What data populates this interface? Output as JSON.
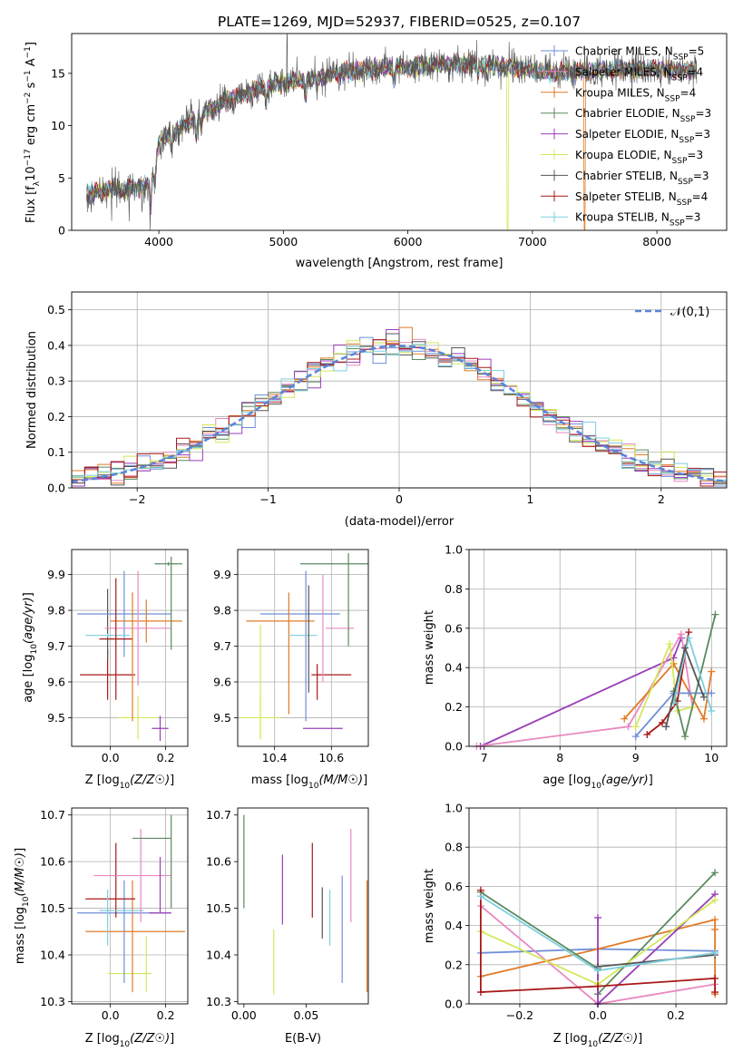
{
  "figure": {
    "title": "PLATE=1269, MJD=52937, FIBERID=0525, z=0.107"
  },
  "models": [
    {
      "name": "Chabrier MILES, N_SSP=5",
      "label_main": "Chabrier MILES, N",
      "label_sub": "SSP",
      "label_tail": "=5",
      "color": "#6f8fd8"
    },
    {
      "name": "Salpeter MILES, N_SSP=4",
      "label_main": "Salpeter MILES, N",
      "label_sub": "SSP",
      "label_tail": "=4",
      "color": "#e889c0"
    },
    {
      "name": "Kroupa MILES, N_SSP=4",
      "label_main": "Kroupa MILES, N",
      "label_sub": "SSP",
      "label_tail": "=4",
      "color": "#e07b28"
    },
    {
      "name": "Chabrier ELODIE, N_SSP=3",
      "label_main": "Chabrier ELODIE, N",
      "label_sub": "SSP",
      "label_tail": "=3",
      "color": "#5a8a60"
    },
    {
      "name": "Salpeter ELODIE, N_SSP=3",
      "label_main": "Salpeter ELODIE, N",
      "label_sub": "SSP",
      "label_tail": "=3",
      "color": "#9a3fb8"
    },
    {
      "name": "Kroupa ELODIE, N_SSP=3",
      "label_main": "Kroupa ELODIE, N",
      "label_sub": "SSP",
      "label_tail": "=3",
      "color": "#d4e85a"
    },
    {
      "name": "Chabrier STELIB, N_SSP=3",
      "label_main": "Chabrier STELIB, N",
      "label_sub": "SSP",
      "label_tail": "=3",
      "color": "#555555"
    },
    {
      "name": "Salpeter STELIB, N_SSP=4",
      "label_main": "Salpeter STELIB, N",
      "label_sub": "SSP",
      "label_tail": "=4",
      "color": "#a81818"
    },
    {
      "name": "Kroupa STELIB, N_SSP=3",
      "label_main": "Kroupa STELIB, N",
      "label_sub": "SSP",
      "label_tail": "=3",
      "color": "#7ecfe0"
    }
  ],
  "chart_data": [
    {
      "id": "spectrum",
      "type": "line",
      "xlabel": "wavelength [Angstrom, rest frame]",
      "ylabel_parts": [
        "Flux [f",
        "λ",
        "10",
        "−17",
        " erg cm",
        "−2",
        " s",
        "−1",
        " A",
        "−1",
        "]"
      ],
      "xlim": [
        3300,
        8560
      ],
      "ylim": [
        0,
        18.8
      ],
      "xticks": [
        4000,
        5000,
        6000,
        7000,
        8000
      ],
      "yticks": [
        0,
        5,
        10,
        15
      ],
      "grid": false,
      "legend_position": "right",
      "x_range": [
        3420,
        8320
      ],
      "continuum": [
        [
          3420,
          3.4
        ],
        [
          3600,
          4.0
        ],
        [
          3700,
          3.8
        ],
        [
          3900,
          4.3
        ],
        [
          3950,
          5.0
        ],
        [
          4000,
          8.5
        ],
        [
          4100,
          9.2
        ],
        [
          4200,
          10.0
        ],
        [
          4400,
          11.5
        ],
        [
          4600,
          12.6
        ],
        [
          4800,
          13.6
        ],
        [
          5000,
          14.2
        ],
        [
          5200,
          14.4
        ],
        [
          5400,
          14.9
        ],
        [
          5600,
          15.3
        ],
        [
          5800,
          15.5
        ],
        [
          6000,
          15.6
        ],
        [
          6200,
          15.9
        ],
        [
          6400,
          15.9
        ],
        [
          6600,
          15.8
        ],
        [
          6800,
          15.6
        ],
        [
          7000,
          15.3
        ],
        [
          7200,
          15.0
        ],
        [
          7400,
          15.2
        ],
        [
          7600,
          15.3
        ],
        [
          7800,
          15.4
        ],
        [
          8000,
          15.3
        ],
        [
          8320,
          15.3
        ]
      ],
      "absorption_lines": [
        [
          3934,
          2.5
        ],
        [
          3969,
          2.2
        ],
        [
          4102,
          1.5
        ],
        [
          4300,
          1.6
        ],
        [
          4340,
          1.4
        ],
        [
          4861,
          1.6
        ],
        [
          5175,
          1.4
        ],
        [
          5270,
          0.8
        ],
        [
          5890,
          1.2
        ],
        [
          6563,
          1.0
        ]
      ],
      "spikes": [
        [
          5030,
          5.6
        ],
        [
          6800,
          -15.8
        ],
        [
          7420,
          -15.4
        ],
        [
          3930,
          -3.8
        ],
        [
          3760,
          -2.5
        ],
        [
          3620,
          -2.0
        ]
      ]
    },
    {
      "id": "residual-histogram",
      "type": "histogram",
      "xlabel": "(data-model)/error",
      "ylabel": "Normed distribution",
      "xlim": [
        -2.5,
        2.5
      ],
      "ylim": [
        0,
        0.55
      ],
      "xticks": [
        -2,
        -1,
        0,
        1,
        2
      ],
      "xtick_labels": [
        "−2",
        "−1",
        "0",
        "1",
        "2"
      ],
      "yticks": [
        0.0,
        0.1,
        0.2,
        0.3,
        0.4,
        0.5
      ],
      "grid": true,
      "bin_width": 0.1,
      "bin_start": -2.5,
      "noise": 0.035,
      "reference": {
        "label": "𝒩(0,1)",
        "color": "#5b84d9",
        "style": "dashed"
      }
    },
    {
      "id": "age-vs-Z",
      "type": "errorbar",
      "xlabel": "Z [log10(Z/Z☉)]",
      "ylabel": "age [log10(age/yr)]",
      "xlim": [
        -0.14,
        0.28
      ],
      "ylim": [
        9.42,
        9.97
      ],
      "xticks": [
        0.0,
        0.2
      ],
      "yticks": [
        9.5,
        9.6,
        9.7,
        9.8,
        9.9
      ],
      "grid": true,
      "points": [
        {
          "x": 0.1,
          "xerr": 0.07,
          "y": 9.5,
          "yerr": 0.06,
          "c": 5
        },
        {
          "x": 0.18,
          "xerr": 0.03,
          "y": 9.47,
          "yerr": 0.035,
          "c": 4
        },
        {
          "x": -0.01,
          "xerr": 0.1,
          "y": 9.62,
          "yerr": 0.07,
          "c": 7
        },
        {
          "x": -0.01,
          "xerr": 0.0,
          "y": 9.76,
          "yerr": 0.1,
          "c": 6
        },
        {
          "x": 0.05,
          "xerr": 0.17,
          "y": 9.79,
          "yerr": 0.12,
          "c": 0
        },
        {
          "x": 0.13,
          "xerr": 0.13,
          "y": 9.77,
          "yerr": 0.06,
          "c": 2
        },
        {
          "x": 0.1,
          "xerr": 0.12,
          "y": 9.75,
          "yerr": 0.16,
          "c": 1
        },
        {
          "x": -0.01,
          "xerr": 0.08,
          "y": 9.73,
          "yerr": 0.005,
          "c": 8
        },
        {
          "x": 0.02,
          "xerr": 0.06,
          "y": 9.72,
          "yerr": 0.17,
          "c": 7
        },
        {
          "x": 0.08,
          "xerr": 0.0,
          "y": 9.67,
          "yerr": 0.18,
          "c": 2
        },
        {
          "x": 0.21,
          "xerr": 0.05,
          "y": 9.93,
          "yerr": 0.005,
          "c": 3
        },
        {
          "x": 0.22,
          "xerr": 0.0,
          "y": 9.82,
          "yerr": 0.13,
          "c": 3
        }
      ]
    },
    {
      "id": "age-vs-mass",
      "type": "errorbar",
      "xlabel": "mass [log10(M/M☉)]",
      "ylabel": "",
      "xlim": [
        10.27,
        10.73
      ],
      "ylim": [
        9.42,
        9.97
      ],
      "xticks": [
        10.4,
        10.6
      ],
      "yticks": [
        9.5,
        9.6,
        9.7,
        9.8,
        9.9
      ],
      "grid": true,
      "points": [
        {
          "x": 10.35,
          "xerr": 0.07,
          "y": 9.5,
          "yerr": 0.06,
          "c": 5
        },
        {
          "x": 10.35,
          "xerr": 0.0,
          "y": 9.6,
          "yerr": 0.16,
          "c": 5
        },
        {
          "x": 10.57,
          "xerr": 0.07,
          "y": 9.47,
          "yerr": 0.0,
          "c": 4
        },
        {
          "x": 10.6,
          "xerr": 0.07,
          "y": 9.62,
          "yerr": 0.0,
          "c": 7
        },
        {
          "x": 10.55,
          "xerr": 0.0,
          "y": 9.6,
          "yerr": 0.05,
          "c": 7
        },
        {
          "x": 10.51,
          "xerr": 0.0,
          "y": 9.7,
          "yerr": 0.21,
          "c": 0
        },
        {
          "x": 10.49,
          "xerr": 0.14,
          "y": 9.79,
          "yerr": 0.0,
          "c": 0
        },
        {
          "x": 10.42,
          "xerr": 0.12,
          "y": 9.77,
          "yerr": 0.0,
          "c": 2
        },
        {
          "x": 10.45,
          "xerr": 0.0,
          "y": 9.68,
          "yerr": 0.17,
          "c": 2
        },
        {
          "x": 10.63,
          "xerr": 0.05,
          "y": 9.75,
          "yerr": 0.0,
          "c": 1
        },
        {
          "x": 10.57,
          "xerr": 0.0,
          "y": 9.75,
          "yerr": 0.15,
          "c": 1
        },
        {
          "x": 10.5,
          "xerr": 0.05,
          "y": 9.73,
          "yerr": 0.0,
          "c": 8
        },
        {
          "x": 10.52,
          "xerr": 0.0,
          "y": 9.72,
          "yerr": 0.15,
          "c": 6
        },
        {
          "x": 10.61,
          "xerr": 0.12,
          "y": 9.93,
          "yerr": 0.0,
          "c": 3
        },
        {
          "x": 10.66,
          "xerr": 0.0,
          "y": 9.83,
          "yerr": 0.13,
          "c": 3
        }
      ]
    },
    {
      "id": "mass-weight-vs-age",
      "type": "line",
      "xlabel": "age [log10(age/yr)]",
      "ylabel": "mass weight",
      "xlim": [
        6.8,
        10.2
      ],
      "ylim": [
        0,
        1.0
      ],
      "xticks": [
        7,
        8,
        9,
        10
      ],
      "yticks": [
        0.0,
        0.2,
        0.4,
        0.6,
        0.8,
        1.0
      ],
      "grid": true,
      "series": [
        {
          "c": 4,
          "x": [
            6.95,
            9.5,
            9.6
          ],
          "y": [
            0.0,
            0.45,
            0.55
          ]
        },
        {
          "c": 1,
          "x": [
            6.9,
            8.9,
            9.6,
            9.75
          ],
          "y": [
            0.0,
            0.1,
            0.57,
            0.2
          ]
        },
        {
          "c": 2,
          "x": [
            8.85,
            9.5,
            9.9,
            10.0
          ],
          "y": [
            0.14,
            0.42,
            0.14,
            0.38
          ]
        },
        {
          "c": 5,
          "x": [
            9.0,
            9.45,
            9.55,
            9.75
          ],
          "y": [
            0.1,
            0.52,
            0.18,
            0.2
          ]
        },
        {
          "c": 7,
          "x": [
            9.15,
            9.35,
            9.55,
            9.7
          ],
          "y": [
            0.06,
            0.12,
            0.23,
            0.58
          ]
        },
        {
          "c": 0,
          "x": [
            9.0,
            9.5,
            9.7,
            10.0
          ],
          "y": [
            0.05,
            0.27,
            0.27,
            0.27
          ]
        },
        {
          "c": 3,
          "x": [
            9.5,
            9.65,
            10.05
          ],
          "y": [
            0.28,
            0.05,
            0.67
          ]
        },
        {
          "c": 8,
          "x": [
            9.5,
            9.7,
            10.0
          ],
          "y": [
            0.22,
            0.55,
            0.18
          ]
        },
        {
          "c": 6,
          "x": [
            9.4,
            9.65,
            9.9
          ],
          "y": [
            0.1,
            0.5,
            0.25
          ]
        }
      ]
    },
    {
      "id": "mass-vs-Z",
      "type": "errorbar",
      "xlabel": "Z [log10(Z/Z☉)]",
      "ylabel": "mass [log10(M/M☉)]",
      "xlim": [
        -0.14,
        0.28
      ],
      "ylim": [
        10.295,
        10.715
      ],
      "xticks": [
        0.0,
        0.2
      ],
      "yticks": [
        10.3,
        10.4,
        10.5,
        10.6,
        10.7
      ],
      "grid": true,
      "points": [
        {
          "x": 0.07,
          "xerr": 0.08,
          "y": 10.36,
          "yerr": 0.0,
          "c": 5
        },
        {
          "x": 0.13,
          "xerr": 0.0,
          "y": 10.38,
          "yerr": 0.06,
          "c": 5
        },
        {
          "x": 0.09,
          "xerr": 0.18,
          "y": 10.45,
          "yerr": 0.0,
          "c": 2
        },
        {
          "x": 0.08,
          "xerr": 0.0,
          "y": 10.44,
          "yerr": 0.12,
          "c": 2
        },
        {
          "x": 0.05,
          "xerr": 0.17,
          "y": 10.49,
          "yerr": 0.0,
          "c": 0
        },
        {
          "x": 0.05,
          "xerr": 0.0,
          "y": 10.45,
          "yerr": 0.11,
          "c": 0
        },
        {
          "x": 0.0,
          "xerr": 0.09,
          "y": 10.52,
          "yerr": 0.0,
          "c": 7
        },
        {
          "x": 0.02,
          "xerr": 0.0,
          "y": 10.56,
          "yerr": 0.08,
          "c": 7
        },
        {
          "x": -0.01,
          "xerr": 0.0,
          "y": 10.48,
          "yerr": 0.06,
          "c": 8
        },
        {
          "x": 0.04,
          "xerr": 0.08,
          "y": 10.495,
          "yerr": 0.0,
          "c": 8
        },
        {
          "x": 0.08,
          "xerr": 0.14,
          "y": 10.57,
          "yerr": 0.0,
          "c": 1
        },
        {
          "x": 0.11,
          "xerr": 0.0,
          "y": 10.57,
          "yerr": 0.1,
          "c": 1
        },
        {
          "x": 0.18,
          "xerr": 0.04,
          "y": 10.49,
          "yerr": 0.0,
          "c": 4
        },
        {
          "x": 0.18,
          "xerr": 0.0,
          "y": 10.55,
          "yerr": 0.06,
          "c": 4
        },
        {
          "x": 0.15,
          "xerr": 0.07,
          "y": 10.65,
          "yerr": 0.0,
          "c": 3
        },
        {
          "x": 0.22,
          "xerr": 0.0,
          "y": 10.6,
          "yerr": 0.1,
          "c": 3
        }
      ]
    },
    {
      "id": "mass-vs-EBV",
      "type": "errorbar",
      "xlabel": "E(B-V)",
      "ylabel": "",
      "xlim": [
        -0.005,
        0.1
      ],
      "ylim": [
        10.295,
        10.715
      ],
      "xticks": [
        0.0,
        0.05
      ],
      "xtick_labels": [
        "0.00",
        "0.05"
      ],
      "yticks": [
        10.3,
        10.4,
        10.5,
        10.6,
        10.7
      ],
      "grid": false,
      "points": [
        {
          "x": 0.0,
          "xerr": 0.0,
          "y": 10.6,
          "yerr": 0.1,
          "c": 3
        },
        {
          "x": 0.024,
          "xerr": 0.0,
          "y": 10.385,
          "yerr": 0.07,
          "c": 5
        },
        {
          "x": 0.031,
          "xerr": 0.0,
          "y": 10.54,
          "yerr": 0.075,
          "c": 4
        },
        {
          "x": 0.055,
          "xerr": 0.0,
          "y": 10.56,
          "yerr": 0.08,
          "c": 7
        },
        {
          "x": 0.063,
          "xerr": 0.0,
          "y": 10.49,
          "yerr": 0.055,
          "c": 6
        },
        {
          "x": 0.069,
          "xerr": 0.0,
          "y": 10.48,
          "yerr": 0.06,
          "c": 8
        },
        {
          "x": 0.079,
          "xerr": 0.0,
          "y": 10.455,
          "yerr": 0.115,
          "c": 0
        },
        {
          "x": 0.086,
          "xerr": 0.0,
          "y": 10.57,
          "yerr": 0.1,
          "c": 1
        },
        {
          "x": 0.099,
          "xerr": 0.0,
          "y": 10.44,
          "yerr": 0.12,
          "c": 2
        }
      ]
    },
    {
      "id": "mass-weight-vs-Z",
      "type": "line",
      "xlabel": "Z [log10(Z/Z☉)]",
      "ylabel": "mass weight",
      "xlim": [
        -0.33,
        0.33
      ],
      "ylim": [
        0,
        1.0
      ],
      "xticks": [
        -0.2,
        0.0,
        0.2
      ],
      "xtick_labels": [
        "−0.2",
        "0.0",
        "0.2"
      ],
      "yticks": [
        0.0,
        0.2,
        0.4,
        0.6,
        0.8,
        1.0
      ],
      "grid": true,
      "series": [
        {
          "c": 0,
          "x": [
            -0.3,
            0.0,
            0.3
          ],
          "y": [
            0.26,
            0.28,
            0.27
          ]
        },
        {
          "c": 1,
          "x": [
            -0.3,
            0.0,
            0.3
          ],
          "y": [
            0.5,
            0.0,
            0.1
          ]
        },
        {
          "c": 2,
          "x": [
            -0.3,
            0.0,
            0.3,
            0.3,
            0.3
          ],
          "y": [
            0.14,
            0.28,
            0.43,
            0.05,
            0.38
          ]
        },
        {
          "c": 3,
          "x": [
            -0.3,
            0.0,
            0.0,
            0.3
          ],
          "y": [
            0.57,
            0.18,
            0.05,
            0.67
          ]
        },
        {
          "c": 4,
          "x": [
            0.0,
            0.0,
            0.0,
            0.3
          ],
          "y": [
            0.44,
            0.0,
            0.0,
            0.56
          ]
        },
        {
          "c": 5,
          "x": [
            -0.3,
            0.0,
            0.3
          ],
          "y": [
            0.37,
            0.1,
            0.53
          ]
        },
        {
          "c": 6,
          "x": [
            0.0,
            0.3
          ],
          "y": [
            0.19,
            0.25
          ]
        },
        {
          "c": 7,
          "x": [
            -0.3,
            -0.3,
            0.0,
            0.3,
            0.3
          ],
          "y": [
            0.58,
            0.06,
            0.09,
            0.13,
            0.06
          ]
        },
        {
          "c": 8,
          "x": [
            -0.3,
            0.0,
            0.3
          ],
          "y": [
            0.55,
            0.17,
            0.26
          ]
        }
      ]
    }
  ]
}
